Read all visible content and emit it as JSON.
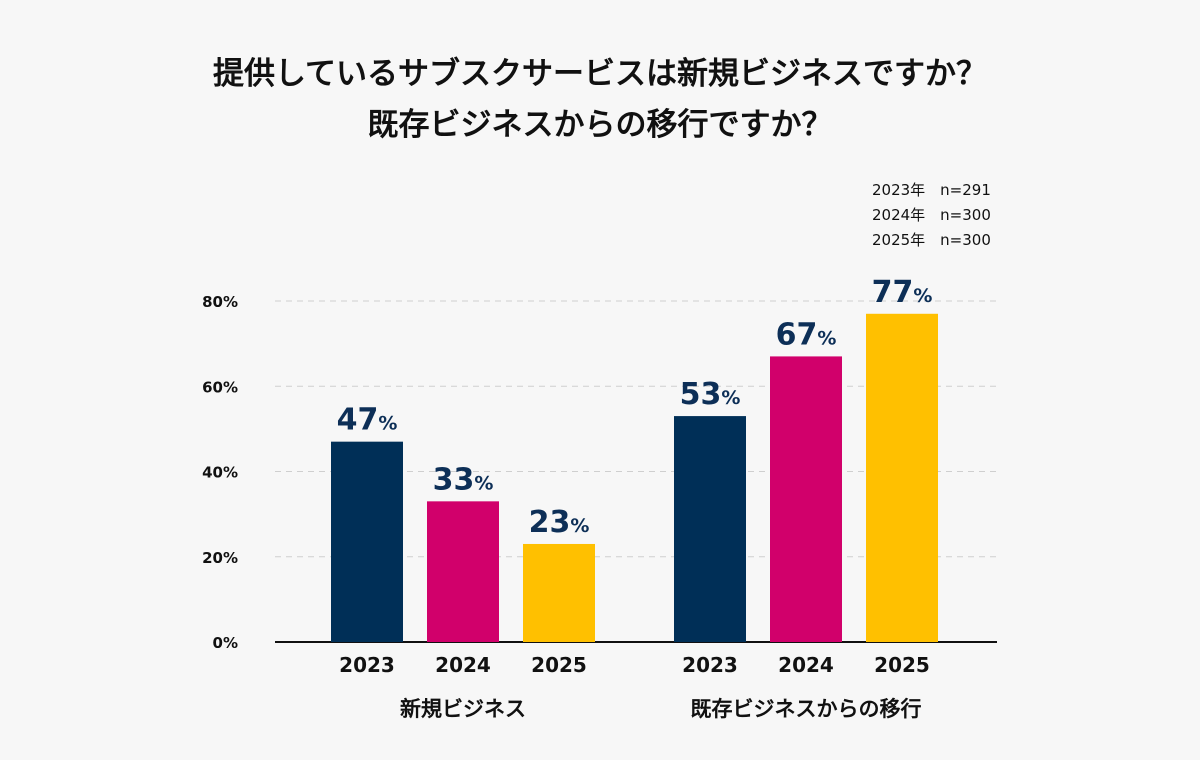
{
  "chart_data": {
    "type": "bar",
    "title": [
      "提供しているサブスクサービスは新規ビジネスですか？",
      "既存ビジネスからの移行ですか？"
    ],
    "legend": [
      "2023年　n=291",
      "2024年　n=300",
      "2025年　n=300"
    ],
    "legend_placement": "top-right",
    "groups": [
      {
        "name": "新規ビジネス",
        "categories": [
          "2023",
          "2024",
          "2025"
        ],
        "values": [
          47,
          33,
          23
        ]
      },
      {
        "name": "既存ビジネスからの移行",
        "categories": [
          "2023",
          "2024",
          "2025"
        ],
        "values": [
          53,
          67,
          77
        ]
      }
    ],
    "colors": {
      "2023": "#002f57",
      "2024": "#d1006b",
      "2025": "#ffc000"
    },
    "value_suffix": "%",
    "ylim": [
      0,
      80
    ],
    "yticks": [
      0,
      20,
      40,
      60,
      80
    ],
    "ytick_labels": [
      "0%",
      "20%",
      "40%",
      "60%",
      "80%"
    ],
    "grid": "horizontal-dashed",
    "xlabel": "",
    "ylabel": ""
  }
}
